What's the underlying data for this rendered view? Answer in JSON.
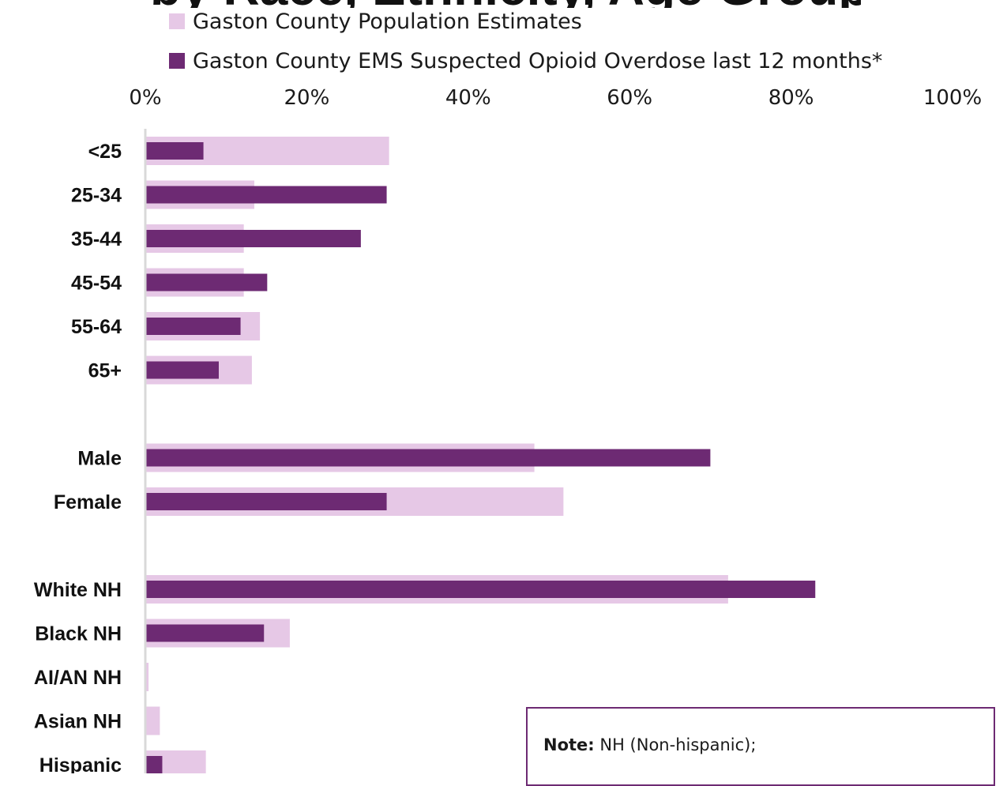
{
  "title_fragment": "by Race, Ethnicity, Age Groups",
  "legend": [
    {
      "label": "Gaston County Population Estimates",
      "color": "#e6c8e6"
    },
    {
      "label": "Gaston County EMS Suspected Opioid Overdose last 12 months*",
      "color": "#6d2a73"
    }
  ],
  "note": {
    "label": "Note:",
    "text": "NH (Non-hispanic);"
  },
  "chart_data": {
    "type": "bar",
    "orientation": "horizontal",
    "xlim": [
      0,
      100
    ],
    "tick_labels": [
      "0%",
      "20%",
      "40%",
      "60%",
      "80%",
      "100%"
    ],
    "categories": [
      "<25",
      "25-34",
      "35-44",
      "45-54",
      "55-64",
      "65+",
      "",
      "Male",
      "Female",
      "",
      "White NH",
      "Black NH",
      "AI/AN NH",
      "Asian NH",
      "Hispanic"
    ],
    "series": [
      {
        "name": "Gaston County Population Estimates",
        "color": "#e6c8e6",
        "values": [
          30.2,
          13.5,
          12.2,
          12.2,
          14.2,
          13.2,
          null,
          48.2,
          51.8,
          null,
          72.2,
          17.9,
          0.4,
          1.8,
          7.5
        ]
      },
      {
        "name": "Gaston County EMS Suspected Opioid Overdose last 12 months*",
        "color": "#6d2a73",
        "values": [
          7.2,
          29.9,
          26.7,
          15.1,
          11.8,
          9.1,
          null,
          70.0,
          29.9,
          null,
          83.0,
          14.7,
          0.0,
          0.0,
          2.1
        ]
      }
    ],
    "grid": false,
    "legend_position": "top"
  }
}
